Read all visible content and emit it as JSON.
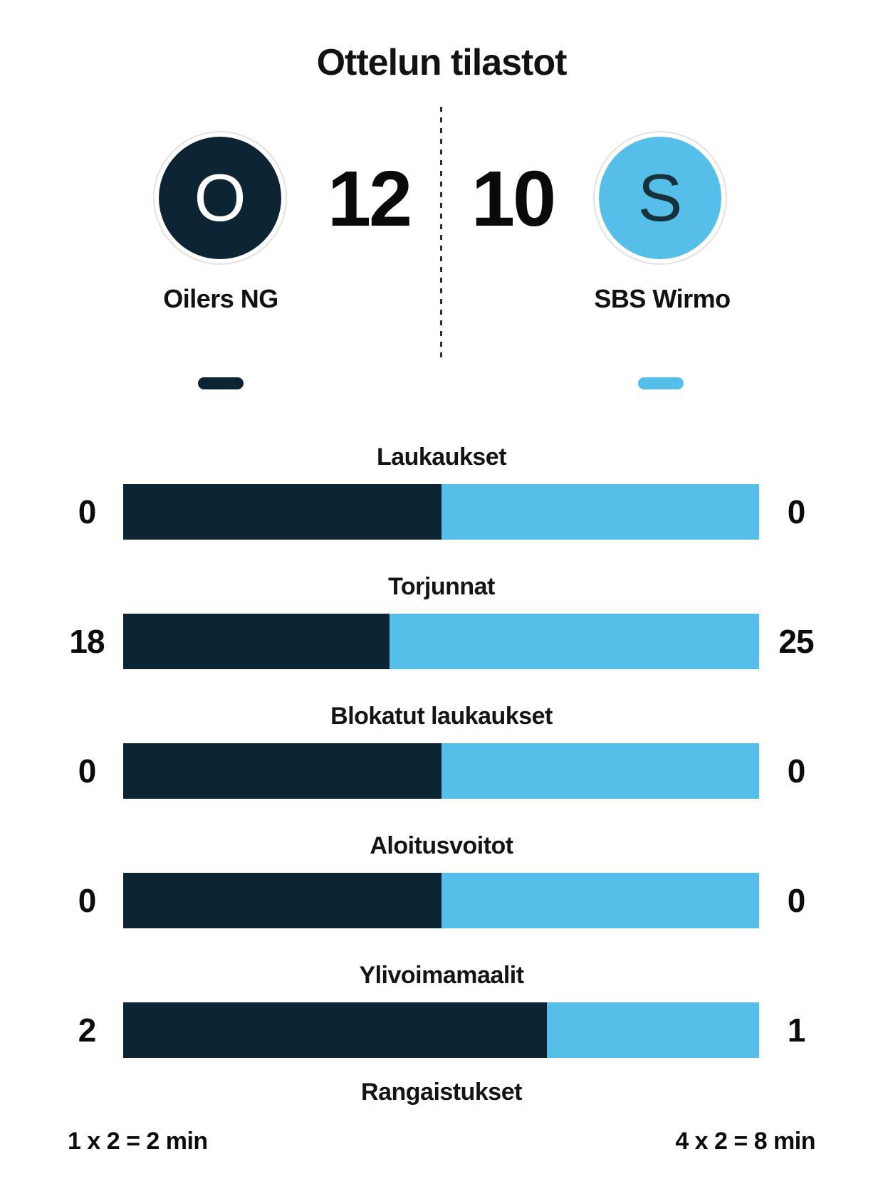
{
  "title": "Ottelun tilastot",
  "colors": {
    "home": "#0c2433",
    "away": "#55bfea",
    "badge_ring": "#e4e2e0",
    "away_letter": "#16303c",
    "home_letter": "#ffffff",
    "text": "#111111"
  },
  "scoreboard": {
    "home": {
      "initial": "O",
      "name": "Oilers NG",
      "score": "12"
    },
    "away": {
      "initial": "S",
      "name": "SBS Wirmo",
      "score": "10"
    }
  },
  "chart_data": {
    "type": "bar",
    "orientation": "horizontal-split-pairs",
    "title": "Ottelun tilastot",
    "categories": [
      "Laukaukset",
      "Torjunnat",
      "Blokatut laukaukset",
      "Aloitusvoitot",
      "Ylivoimamaalit"
    ],
    "series": [
      {
        "name": "Oilers NG",
        "color": "#0c2433",
        "values": [
          0,
          18,
          0,
          0,
          2
        ]
      },
      {
        "name": "SBS Wirmo",
        "color": "#55bfea",
        "values": [
          0,
          25,
          0,
          0,
          1
        ]
      }
    ],
    "split_rule": "segment width = home/(home+away); 50/50 when both values are 0",
    "legend_position": "under team names",
    "grid": false
  },
  "penalties": {
    "label": "Rangaistukset",
    "home": "1 x 2 = 2 min",
    "away": "4 x 2 = 8 min"
  }
}
